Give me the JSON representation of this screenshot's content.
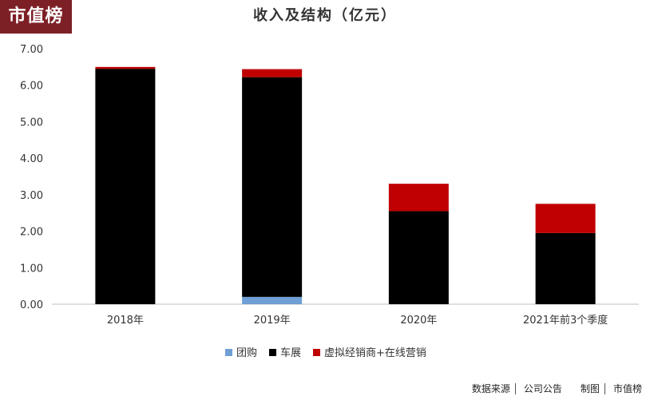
{
  "logo": "市值榜",
  "footer": {
    "source_label": "数据来源",
    "source_value": "公司公告",
    "made_label": "制图",
    "made_value": "市值榜"
  },
  "colors": {
    "group_buy": "#6f9fd5",
    "car_show": "#000000",
    "virtual_online": "#c00000",
    "axis": "#bfbfbf",
    "text": "#333333"
  },
  "chart_data": {
    "type": "bar",
    "stacked": true,
    "title": "收入及结构（亿元）",
    "categories": [
      "2018年",
      "2019年",
      "2020年",
      "2021年前3个季度"
    ],
    "series": [
      {
        "name": "团购",
        "values": [
          0,
          0.2,
          0,
          0
        ],
        "color": "#6f9fd5"
      },
      {
        "name": "车展",
        "values": [
          6.45,
          6.02,
          2.55,
          1.95
        ],
        "color": "#000000"
      },
      {
        "name": "虚拟经销商+在线营销",
        "values": [
          0.05,
          0.22,
          0.75,
          0.8
        ],
        "color": "#c00000"
      }
    ],
    "ylim": [
      0,
      7
    ],
    "yticks": [
      "0.00",
      "1.00",
      "2.00",
      "3.00",
      "4.00",
      "5.00",
      "6.00",
      "7.00"
    ],
    "xlabel": "",
    "ylabel": "",
    "grid": false,
    "legend_position": "bottom"
  }
}
